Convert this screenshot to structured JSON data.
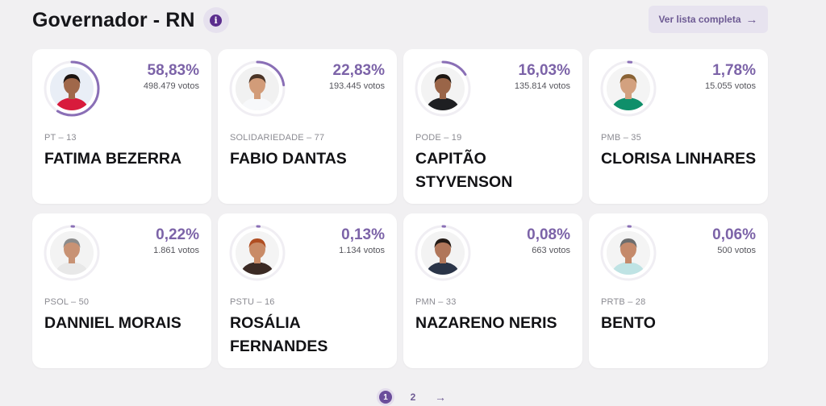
{
  "header": {
    "title": "Governador - RN",
    "info_icon": "info-icon",
    "list_label": "Ver lista completa",
    "list_icon": "arrow-right-icon"
  },
  "candidates": [
    {
      "pct": "58,83%",
      "pct_value": 58.83,
      "votes": "498.479 votos",
      "party": "PT – 13",
      "name": "FATIMA BEZERRA",
      "avatar": {
        "bg": "#e9eef6",
        "skin": "#a0684a",
        "hair": "#1c1411",
        "shirt": "#d81b3c"
      }
    },
    {
      "pct": "22,83%",
      "pct_value": 22.83,
      "votes": "193.445 votos",
      "party": "SOLIDARIEDADE – 77",
      "name": "FABIO DANTAS",
      "avatar": {
        "bg": "#f1f1f1",
        "skin": "#d29c79",
        "hair": "#4a3426",
        "shirt": "#f7f8fa"
      }
    },
    {
      "pct": "16,03%",
      "pct_value": 16.03,
      "votes": "135.814 votos",
      "party": "PODE – 19",
      "name": "CAPITÃO STYVENSON",
      "avatar": {
        "bg": "#f3f3f3",
        "skin": "#9a6548",
        "hair": "#1e1713",
        "shirt": "#1e1f22"
      }
    },
    {
      "pct": "1,78%",
      "pct_value": 1.78,
      "votes": "15.055 votos",
      "party": "PMB – 35",
      "name": "CLORISA LINHARES",
      "avatar": {
        "bg": "#f4f4f4",
        "skin": "#d3a17f",
        "hair": "#8a6335",
        "shirt": "#0f8f6a"
      }
    },
    {
      "pct": "0,22%",
      "pct_value": 0.22,
      "votes": "1.861 votos",
      "party": "PSOL – 50",
      "name": "DANNIEL MORAIS",
      "avatar": {
        "bg": "#f3f3f3",
        "skin": "#c89274",
        "hair": "#8c8c8c",
        "shirt": "#e8e8e8"
      }
    },
    {
      "pct": "0,13%",
      "pct_value": 0.13,
      "votes": "1.134 votos",
      "party": "PSTU – 16",
      "name": "ROSÁLIA FERNANDES",
      "avatar": {
        "bg": "#f4f4f4",
        "skin": "#c98b67",
        "hair": "#b04e22",
        "shirt": "#3b2a24"
      }
    },
    {
      "pct": "0,08%",
      "pct_value": 0.08,
      "votes": "663 votos",
      "party": "PMN – 33",
      "name": "NAZARENO NERIS",
      "avatar": {
        "bg": "#f3f3f3",
        "skin": "#b0765a",
        "hair": "#231a16",
        "shirt": "#2a3448"
      }
    },
    {
      "pct": "0,06%",
      "pct_value": 0.06,
      "votes": "500 votos",
      "party": "PRTB – 28",
      "name": "BENTO",
      "avatar": {
        "bg": "#f4f4f4",
        "skin": "#c58a6b",
        "hair": "#6d6d6d",
        "shirt": "#bfe3e4"
      }
    }
  ],
  "pagination": {
    "pages": [
      "1",
      "2"
    ],
    "current": "1",
    "next_icon": "arrow-right-icon"
  },
  "colors": {
    "accent": "#7c63a8",
    "ring": "#8a6fb6",
    "ring_track": "#f0eef3"
  }
}
